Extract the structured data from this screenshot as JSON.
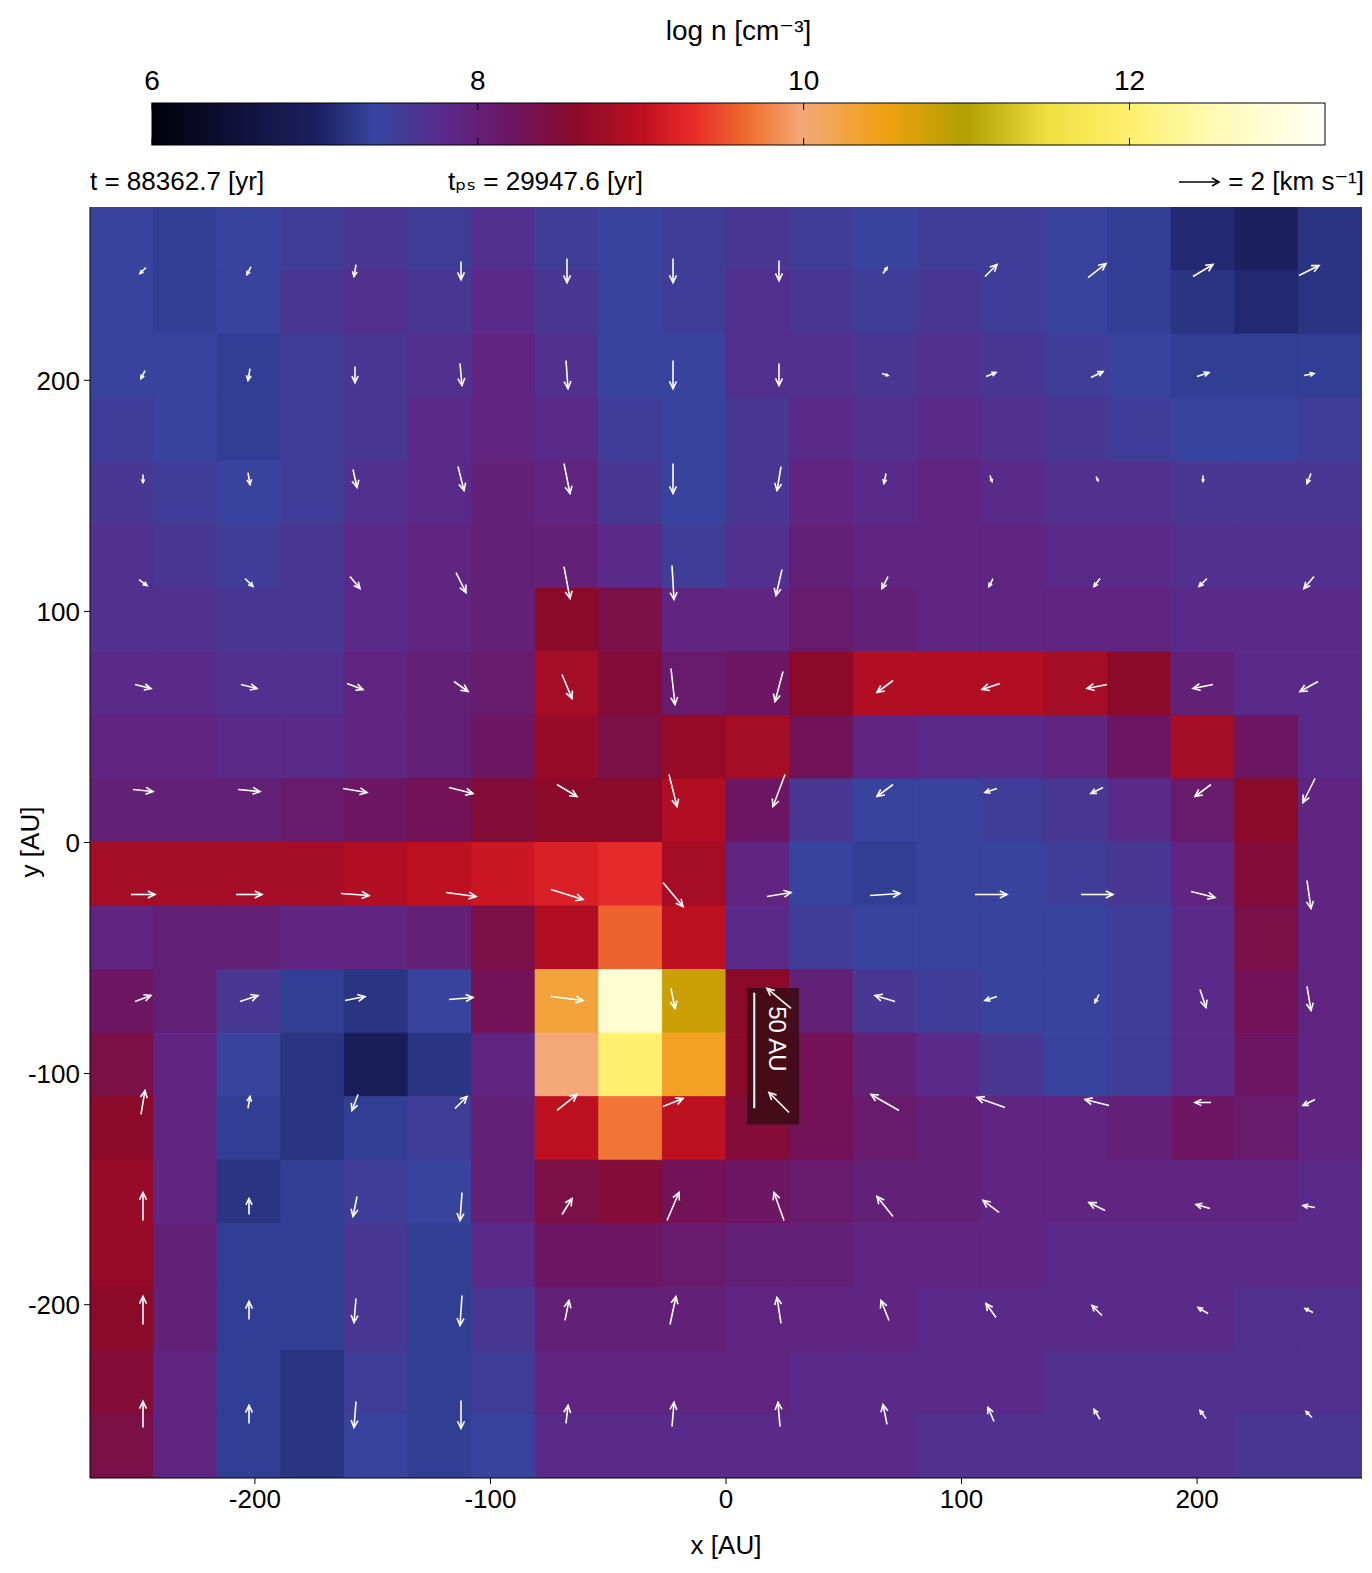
{
  "chart_data": {
    "type": "heatmap",
    "annotations": [
      "t = 88362.7 [yr]",
      "tₚₛ = 29947.6 [yr]"
    ],
    "x_label": "x [AU]",
    "y_label": "y [AU]",
    "xlim": [
      -270,
      270
    ],
    "ylim": [
      -275,
      275
    ],
    "xticks": [
      -200,
      -100,
      0,
      100,
      200
    ],
    "yticks": [
      -200,
      -100,
      0,
      100,
      200
    ],
    "colorbar": {
      "label": "log n [cm⁻³]",
      "range": [
        6,
        13.2
      ],
      "ticks": [
        6,
        8,
        10,
        12
      ]
    },
    "cells": {
      "x_edges": [
        -270,
        -243,
        -216,
        -189,
        -162,
        -135,
        -108,
        -81,
        -54,
        -27,
        0,
        27,
        54,
        81,
        108,
        135,
        162,
        189,
        216,
        243,
        270
      ],
      "y_edges": [
        275,
        247.5,
        220,
        192.5,
        165,
        137.5,
        110,
        82.5,
        55,
        27.5,
        0,
        -27.5,
        -55,
        -82.5,
        -110,
        -137.5,
        -165,
        -192.5,
        -220,
        -247.5,
        -275
      ],
      "values": [
        [
          7.4,
          7.3,
          7.4,
          7.5,
          7.6,
          7.5,
          7.7,
          7.5,
          7.4,
          7.5,
          7.6,
          7.5,
          7.4,
          7.5,
          7.5,
          7.4,
          7.3,
          7.1,
          7.0,
          7.2
        ],
        [
          7.4,
          7.3,
          7.4,
          7.6,
          7.7,
          7.6,
          7.8,
          7.6,
          7.4,
          7.5,
          7.7,
          7.6,
          7.5,
          7.6,
          7.5,
          7.4,
          7.3,
          7.2,
          7.1,
          7.2
        ],
        [
          7.4,
          7.4,
          7.3,
          7.5,
          7.6,
          7.7,
          7.9,
          7.7,
          7.4,
          7.4,
          7.7,
          7.7,
          7.6,
          7.7,
          7.6,
          7.5,
          7.4,
          7.3,
          7.3,
          7.3
        ],
        [
          7.5,
          7.4,
          7.3,
          7.5,
          7.6,
          7.8,
          7.9,
          7.8,
          7.5,
          7.4,
          7.6,
          7.8,
          7.7,
          7.8,
          7.7,
          7.6,
          7.5,
          7.4,
          7.4,
          7.5
        ],
        [
          7.6,
          7.5,
          7.4,
          7.5,
          7.7,
          7.8,
          8.0,
          7.9,
          7.6,
          7.4,
          7.6,
          7.9,
          7.8,
          7.9,
          7.8,
          7.7,
          7.7,
          7.6,
          7.6,
          7.6
        ],
        [
          7.7,
          7.6,
          7.5,
          7.6,
          7.8,
          7.9,
          8.0,
          8.0,
          7.8,
          7.5,
          7.7,
          8.0,
          7.9,
          7.9,
          7.9,
          7.8,
          7.8,
          7.7,
          7.7,
          7.7
        ],
        [
          7.7,
          7.7,
          7.6,
          7.6,
          7.8,
          7.9,
          8.0,
          8.6,
          8.4,
          7.9,
          7.9,
          8.1,
          8.0,
          7.9,
          7.9,
          7.9,
          7.9,
          7.8,
          7.8,
          7.8
        ],
        [
          7.8,
          7.8,
          7.7,
          7.7,
          7.9,
          8.0,
          8.1,
          8.8,
          8.5,
          8.1,
          8.2,
          8.6,
          8.9,
          8.9,
          8.9,
          8.8,
          8.6,
          8.0,
          7.8,
          7.8
        ],
        [
          7.9,
          7.9,
          7.8,
          7.8,
          7.9,
          8.0,
          8.2,
          8.7,
          8.4,
          8.7,
          8.8,
          8.3,
          7.9,
          7.8,
          7.8,
          7.9,
          8.2,
          8.8,
          8.2,
          7.8
        ],
        [
          8.0,
          8.0,
          8.0,
          8.1,
          8.2,
          8.3,
          8.5,
          8.6,
          8.6,
          8.9,
          8.2,
          7.6,
          7.4,
          7.4,
          7.5,
          7.6,
          7.8,
          8.1,
          8.6,
          7.9
        ],
        [
          8.8,
          8.8,
          8.8,
          8.8,
          8.9,
          9.0,
          9.1,
          9.2,
          9.3,
          8.8,
          7.9,
          7.4,
          7.3,
          7.4,
          7.4,
          7.5,
          7.6,
          7.9,
          8.5,
          7.9
        ],
        [
          7.9,
          8.0,
          8.0,
          7.9,
          7.9,
          8.0,
          8.4,
          8.9,
          9.6,
          9.0,
          7.8,
          7.5,
          7.4,
          7.4,
          7.4,
          7.4,
          7.5,
          7.8,
          8.4,
          7.9
        ],
        [
          8.2,
          8.0,
          7.6,
          7.3,
          7.2,
          7.4,
          8.3,
          10.3,
          12.8,
          10.8,
          8.6,
          8.0,
          7.6,
          7.5,
          7.4,
          7.4,
          7.5,
          7.8,
          8.3,
          7.9
        ],
        [
          8.4,
          7.9,
          7.4,
          7.2,
          6.9,
          7.2,
          7.9,
          10.0,
          12.0,
          10.4,
          8.6,
          8.3,
          8.0,
          7.8,
          7.6,
          7.4,
          7.5,
          7.8,
          8.2,
          7.9
        ],
        [
          8.6,
          7.9,
          7.3,
          7.2,
          7.3,
          7.5,
          8.0,
          9.0,
          9.7,
          9.0,
          8.5,
          8.3,
          8.1,
          8.0,
          7.9,
          7.9,
          8.0,
          8.2,
          8.1,
          7.9
        ],
        [
          8.7,
          7.9,
          7.2,
          7.3,
          7.5,
          7.4,
          8.0,
          8.4,
          8.5,
          8.3,
          8.2,
          8.1,
          8.0,
          8.0,
          7.9,
          7.9,
          7.9,
          7.9,
          7.9,
          7.8
        ],
        [
          8.7,
          8.0,
          7.3,
          7.3,
          7.6,
          7.3,
          7.8,
          8.2,
          8.2,
          8.1,
          8.0,
          8.0,
          7.9,
          7.9,
          7.9,
          7.8,
          7.8,
          7.8,
          7.8,
          7.8
        ],
        [
          8.6,
          8.0,
          7.3,
          7.3,
          7.6,
          7.3,
          7.6,
          8.0,
          8.0,
          8.0,
          7.9,
          7.9,
          7.9,
          7.8,
          7.8,
          7.8,
          7.8,
          7.8,
          7.7,
          7.7
        ],
        [
          8.5,
          7.9,
          7.3,
          7.2,
          7.5,
          7.3,
          7.5,
          7.9,
          7.9,
          7.9,
          7.9,
          7.8,
          7.8,
          7.8,
          7.8,
          7.7,
          7.7,
          7.7,
          7.7,
          7.7
        ],
        [
          8.4,
          7.9,
          7.3,
          7.2,
          7.4,
          7.3,
          7.4,
          7.8,
          7.8,
          7.8,
          7.8,
          7.8,
          7.8,
          7.7,
          7.7,
          7.7,
          7.7,
          7.7,
          7.6,
          7.6
        ]
      ]
    },
    "vectors": {
      "x": [
        -247.5,
        -202.5,
        -157.5,
        -112.5,
        -67.5,
        -22.5,
        22.5,
        67.5,
        112.5,
        157.5,
        202.5,
        247.5
      ],
      "y": [
        247.5,
        202.5,
        157.5,
        112.5,
        67.5,
        22.5,
        -22.5,
        -67.5,
        -112.5,
        -157.5,
        -202.5,
        -247.5
      ],
      "vx": [
        [
          -0.3,
          -0.2,
          -0.1,
          0,
          0,
          0,
          0,
          0.2,
          0.6,
          0.9,
          1.0,
          1.0
        ],
        [
          -0.2,
          -0.1,
          0,
          0.1,
          0.1,
          0,
          0,
          0.3,
          0.5,
          0.6,
          0.6,
          0.5
        ],
        [
          0,
          0.1,
          0.2,
          0.3,
          0.3,
          0,
          -0.2,
          -0.1,
          0.1,
          0.1,
          0,
          -0.2
        ],
        [
          0.4,
          0.4,
          0.5,
          0.5,
          0.3,
          0.1,
          -0.3,
          -0.3,
          -0.2,
          -0.3,
          -0.4,
          -0.5
        ],
        [
          0.8,
          0.8,
          0.8,
          0.7,
          0.5,
          0.2,
          -0.4,
          -0.8,
          -0.9,
          -1.0,
          -1.0,
          -0.9
        ],
        [
          1.0,
          1.1,
          1.2,
          1.2,
          1.0,
          0.4,
          -0.6,
          -0.8,
          -0.6,
          -0.6,
          -0.8,
          -0.6
        ],
        [
          1.2,
          1.3,
          1.4,
          1.5,
          1.6,
          1.0,
          1.2,
          1.5,
          1.6,
          1.6,
          1.2,
          0.2
        ],
        [
          0.8,
          0.9,
          1.0,
          1.2,
          1.6,
          0.2,
          -1.2,
          -1.0,
          -0.6,
          -0.2,
          0.3,
          0.2
        ],
        [
          0.2,
          0.1,
          -0.3,
          0.6,
          1.0,
          1.0,
          -1.0,
          -1.4,
          -1.4,
          -1.2,
          -0.8,
          -0.6
        ],
        [
          0,
          0,
          -0.2,
          -0.1,
          0.5,
          0.6,
          -0.5,
          -0.8,
          -0.8,
          -0.8,
          -0.7,
          -0.6
        ],
        [
          0,
          0,
          -0.1,
          -0.1,
          0.2,
          0.3,
          -0.2,
          -0.4,
          -0.5,
          -0.5,
          -0.5,
          -0.4
        ],
        [
          0,
          0,
          -0.1,
          0,
          0.1,
          0.1,
          -0.1,
          -0.2,
          -0.3,
          -0.3,
          -0.3,
          -0.3
        ]
      ],
      "vy": [
        [
          -0.3,
          -0.4,
          -0.6,
          -0.9,
          -1.2,
          -1.2,
          -1.0,
          0.3,
          0.6,
          0.7,
          0.6,
          0.5
        ],
        [
          -0.4,
          -0.6,
          -0.8,
          -1.1,
          -1.4,
          -1.4,
          -1.1,
          -0.1,
          0.2,
          0.3,
          0.2,
          0.1
        ],
        [
          -0.4,
          -0.6,
          -0.9,
          -1.2,
          -1.5,
          -1.5,
          -1.2,
          -0.5,
          -0.3,
          -0.2,
          -0.3,
          -0.5
        ],
        [
          -0.3,
          -0.4,
          -0.6,
          -1.0,
          -1.6,
          -1.7,
          -1.3,
          -0.6,
          -0.4,
          -0.4,
          -0.4,
          -0.6
        ],
        [
          -0.2,
          -0.2,
          -0.3,
          -0.5,
          -1.2,
          -1.8,
          -1.5,
          -0.6,
          -0.3,
          -0.2,
          -0.2,
          -0.5
        ],
        [
          -0.1,
          -0.1,
          -0.2,
          -0.3,
          -0.6,
          -1.6,
          -1.6,
          -0.6,
          -0.2,
          -0.3,
          -0.6,
          -1.2
        ],
        [
          0,
          0,
          -0.1,
          -0.2,
          -0.5,
          -1.2,
          0.2,
          0.1,
          0,
          0,
          -0.3,
          -1.4
        ],
        [
          0.3,
          0.3,
          0.2,
          0.1,
          -0.2,
          -1.0,
          1.0,
          0.3,
          -0.2,
          -0.4,
          -0.9,
          -1.2
        ],
        [
          1.2,
          0.6,
          -0.8,
          0.6,
          0.8,
          0.4,
          1.0,
          0.8,
          0.5,
          0.3,
          0,
          -0.3
        ],
        [
          1.4,
          0.8,
          -1.0,
          -1.4,
          0.8,
          1.4,
          1.4,
          1.0,
          0.6,
          0.4,
          0.2,
          0.1
        ],
        [
          1.4,
          0.9,
          -1.2,
          -1.5,
          1.0,
          1.4,
          1.3,
          1.0,
          0.7,
          0.5,
          0.3,
          0.2
        ],
        [
          1.3,
          0.9,
          -1.3,
          -1.4,
          0.9,
          1.2,
          1.2,
          1.0,
          0.7,
          0.5,
          0.4,
          0.3
        ]
      ]
    },
    "vector_key": {
      "value": 2,
      "label": "= 2 [km s⁻¹]"
    },
    "scale_bar": {
      "label": "50 AU",
      "length": 50,
      "x": 12,
      "y": -115
    }
  }
}
